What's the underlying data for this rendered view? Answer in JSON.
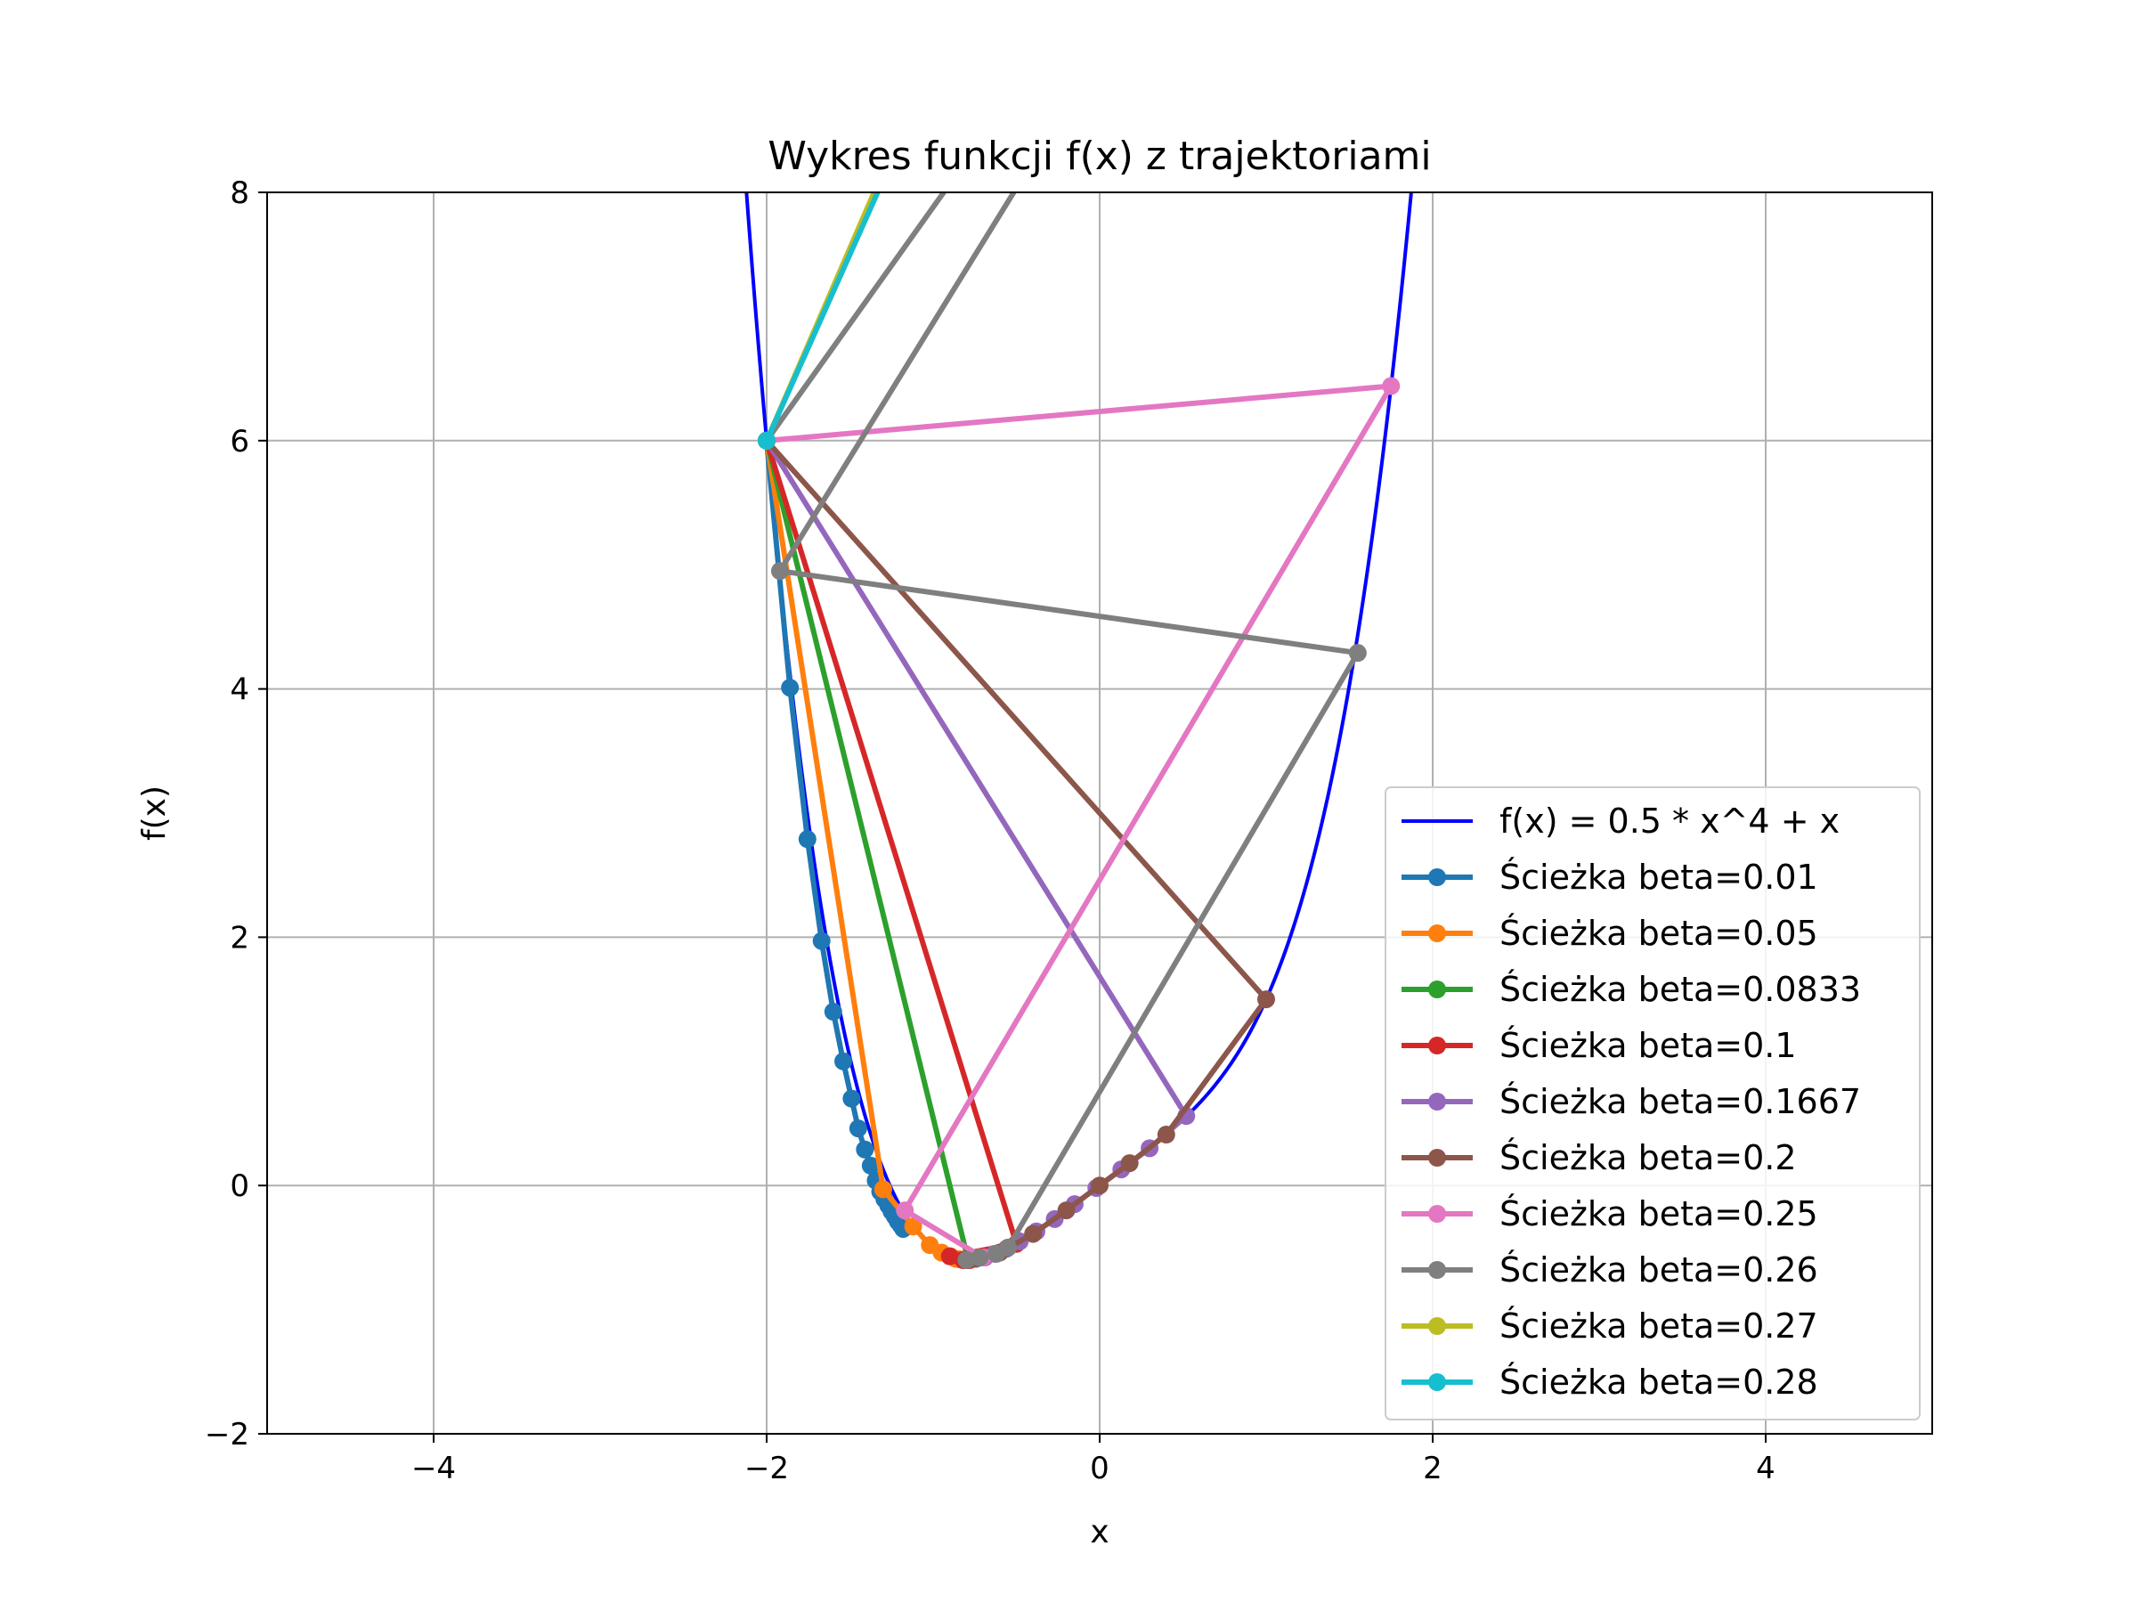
{
  "chart_data": {
    "type": "line",
    "title": "Wykres funkcji f(x) z trajektoriami",
    "xlabel": "x",
    "ylabel": "f(x)",
    "xlim": [
      -5,
      5
    ],
    "ylim": [
      -2,
      8
    ],
    "xticks": [
      -4,
      -2,
      0,
      2,
      4
    ],
    "yticks": [
      -2,
      0,
      2,
      4,
      6,
      8
    ],
    "xtick_labels": [
      "−4",
      "−2",
      "0",
      "2",
      "4"
    ],
    "ytick_labels": [
      "−2",
      "0",
      "2",
      "4",
      "6",
      "8"
    ],
    "grid": true,
    "legend_position": "lower-right",
    "function_series": {
      "name": "f(x) = 0.5 * x^4 + x",
      "color": "#0000ff",
      "x_range": [
        -2.5,
        2.5
      ]
    },
    "series": [
      {
        "name": "Ścieżka beta=0.01",
        "color": "#1f77b4",
        "x": [
          -2.0,
          -1.86,
          -1.755,
          -1.67,
          -1.6,
          -1.54,
          -1.49,
          -1.45,
          -1.41,
          -1.375,
          -1.345,
          -1.318,
          -1.293,
          -1.27,
          -1.25,
          -1.23,
          -1.212,
          -1.195,
          -1.18
        ],
        "y": [
          6.0,
          4.01,
          2.79,
          1.97,
          1.4,
          1.0,
          0.7,
          0.46,
          0.29,
          0.16,
          0.04,
          -0.05,
          -0.11,
          -0.16,
          -0.21,
          -0.25,
          -0.29,
          -0.32,
          -0.35
        ]
      },
      {
        "name": "Ścieżka beta=0.05",
        "color": "#ff7f0e",
        "x": [
          -2.0,
          -1.3,
          -1.12,
          -1.02,
          -0.95,
          -0.9,
          -0.865,
          -0.84,
          -0.82,
          -0.805,
          -0.795,
          -0.79
        ],
        "y": [
          6.0,
          -0.03,
          -0.33,
          -0.48,
          -0.54,
          -0.57,
          -0.59,
          -0.595,
          -0.6,
          -0.6,
          -0.6,
          -0.6
        ]
      },
      {
        "name": "Ścieżka beta=0.0833",
        "color": "#2ca02c",
        "x": [
          -2.0,
          -0.79,
          -0.79
        ],
        "y": [
          6.0,
          -0.6,
          -0.6
        ]
      },
      {
        "name": "Ścieżka beta=0.1",
        "color": "#d62728",
        "x": [
          -2.0,
          -0.5,
          -0.9,
          -0.7,
          -0.82,
          -0.76,
          -0.8,
          -0.78
        ],
        "y": [
          6.0,
          -0.47,
          -0.57,
          -0.58,
          -0.6,
          -0.59,
          -0.6,
          -0.6
        ]
      },
      {
        "name": "Ścieżka beta=0.1667",
        "color": "#9467bd",
        "x": [
          -2.0,
          0.52,
          0.3,
          0.13,
          -0.02,
          -0.15,
          -0.27,
          -0.38,
          -0.48,
          -0.56,
          -0.63,
          -0.69,
          -0.74
        ],
        "y": [
          6.0,
          0.56,
          0.3,
          0.13,
          -0.02,
          -0.15,
          -0.27,
          -0.37,
          -0.45,
          -0.51,
          -0.55,
          -0.58,
          -0.59
        ]
      },
      {
        "name": "Ścieżka beta=0.2",
        "color": "#8c564b",
        "x": [
          -2.0,
          1.0,
          0.4,
          0.18,
          0.0,
          -0.2,
          -0.4,
          -0.6,
          -0.75
        ],
        "y": [
          6.0,
          1.5,
          0.41,
          0.18,
          0.0,
          -0.2,
          -0.39,
          -0.54,
          -0.59
        ]
      },
      {
        "name": "Ścieżka beta=0.25",
        "color": "#e377c2",
        "x": [
          -2.0,
          1.75,
          -1.17,
          -0.7
        ],
        "y": [
          6.0,
          6.44,
          -0.2,
          -0.58
        ]
      },
      {
        "name": "Ścieżka beta=0.26",
        "color": "#7f7f7f",
        "x": [
          -2.0,
          2.2,
          -1.92,
          1.55,
          -0.55,
          -0.62,
          -0.72,
          -0.8
        ],
        "y": [
          6.0,
          13.9,
          4.95,
          4.29,
          -0.5,
          -0.55,
          -0.58,
          -0.6
        ]
      },
      {
        "name": "Ścieżka beta=0.27",
        "color": "#bcbd22",
        "x": [
          -2.0,
          0.0
        ],
        "y": [
          6.0,
          12.2
        ]
      },
      {
        "name": "Ścieżka beta=0.28",
        "color": "#17becf",
        "x": [
          -2.0,
          -0.6
        ],
        "y": [
          6.0,
          10.2
        ]
      }
    ]
  }
}
